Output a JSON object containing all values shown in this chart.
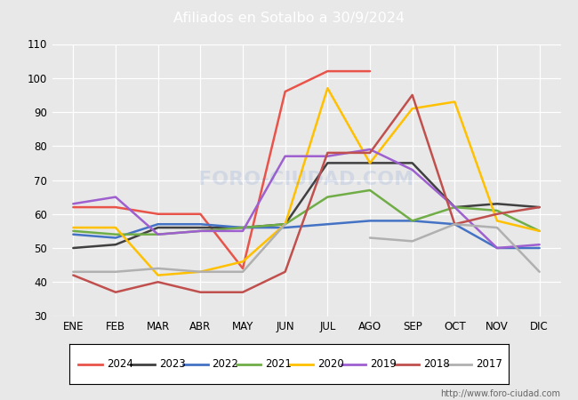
{
  "title": "Afiliados en Sotalbo a 30/9/2024",
  "xlabel": "",
  "ylabel": "",
  "ylim": [
    30,
    110
  ],
  "yticks": [
    30,
    40,
    50,
    60,
    70,
    80,
    90,
    100,
    110
  ],
  "months": [
    "ENE",
    "FEB",
    "MAR",
    "ABR",
    "MAY",
    "JUN",
    "JUL",
    "AGO",
    "SEP",
    "OCT",
    "NOV",
    "DIC"
  ],
  "watermark": "FORO-CIUDAD.COM",
  "url": "http://www.foro-ciudad.com",
  "series": {
    "2024": {
      "color": "#e8534a",
      "data": [
        62,
        62,
        60,
        60,
        44,
        96,
        102,
        102,
        null,
        null,
        null,
        null
      ]
    },
    "2023": {
      "color": "#404040",
      "data": [
        50,
        51,
        56,
        56,
        56,
        57,
        75,
        75,
        75,
        62,
        63,
        62
      ]
    },
    "2022": {
      "color": "#4472c4",
      "data": [
        54,
        53,
        57,
        57,
        56,
        56,
        57,
        58,
        58,
        57,
        50,
        50
      ]
    },
    "2021": {
      "color": "#70ad47",
      "data": [
        55,
        54,
        54,
        55,
        56,
        57,
        65,
        67,
        58,
        62,
        61,
        55
      ]
    },
    "2020": {
      "color": "#ffc000",
      "data": [
        56,
        56,
        42,
        43,
        46,
        57,
        97,
        75,
        91,
        93,
        58,
        55
      ]
    },
    "2019": {
      "color": "#9e5fcf",
      "data": [
        63,
        65,
        54,
        55,
        55,
        77,
        77,
        79,
        73,
        62,
        50,
        51
      ]
    },
    "2018": {
      "color": "#c0504d",
      "data": [
        42,
        37,
        40,
        37,
        37,
        43,
        78,
        78,
        95,
        57,
        60,
        62
      ]
    },
    "2017": {
      "color": "#b0b0b0",
      "data": [
        43,
        43,
        44,
        43,
        43,
        57,
        null,
        53,
        52,
        57,
        56,
        43
      ]
    }
  },
  "bg_color": "#e8e8e8",
  "plot_bg_color": "#e8e8e8",
  "grid_color": "white",
  "title_bg_color": "#4169b0",
  "title_text_color": "white",
  "legend_order": [
    "2024",
    "2023",
    "2022",
    "2021",
    "2020",
    "2019",
    "2018",
    "2017"
  ]
}
